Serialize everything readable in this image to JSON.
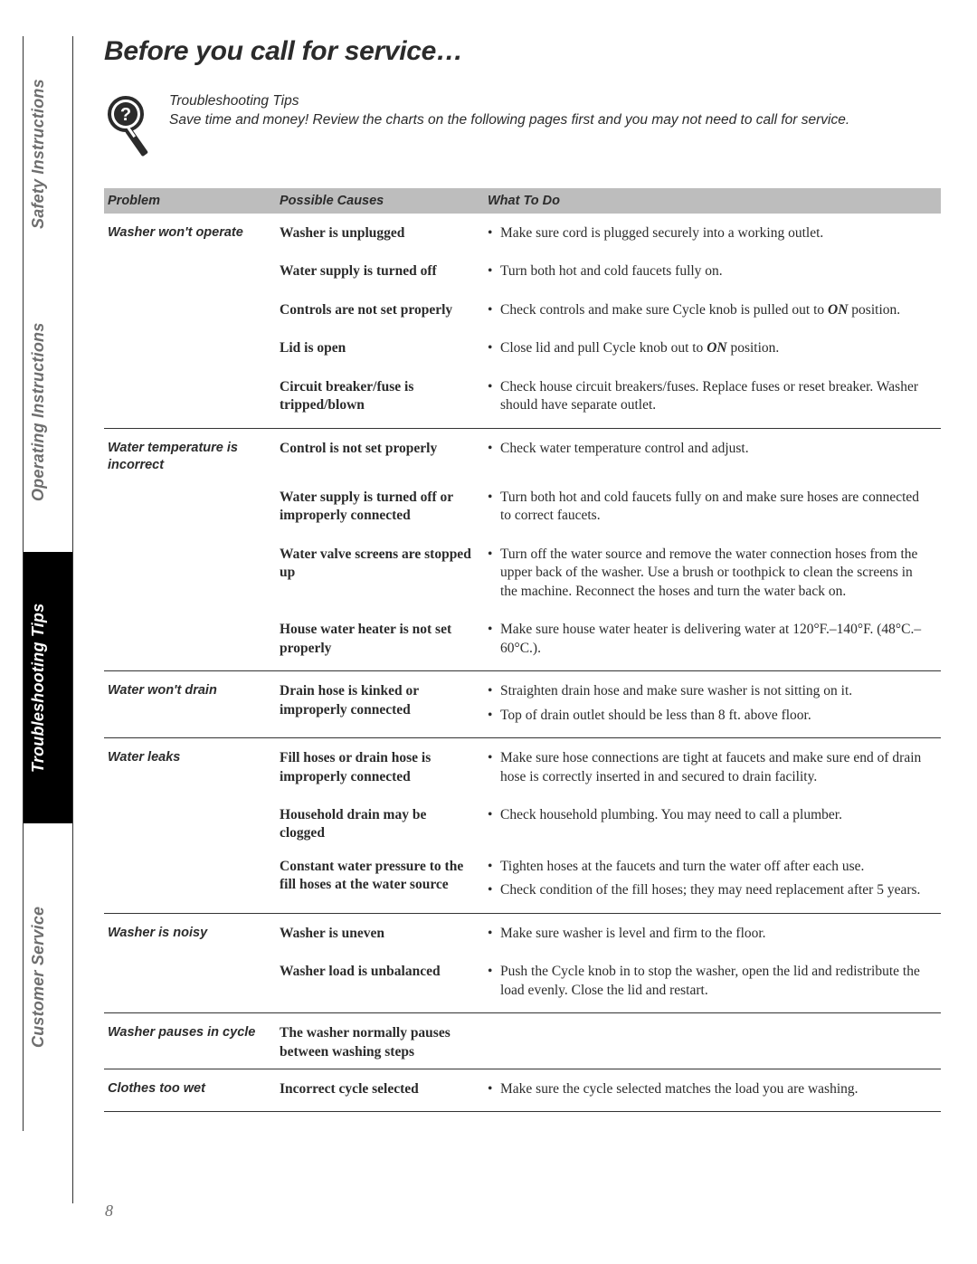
{
  "colors": {
    "page_bg": "#ffffff",
    "text": "#2b2b2b",
    "muted": "#6e6e6e",
    "header_bg": "#bdbdbd",
    "active_tab_bg": "#000000",
    "active_tab_text": "#ffffff",
    "rule": "#333333"
  },
  "typography": {
    "title_font": "Arial, Helvetica, sans-serif",
    "body_font": "Georgia, 'Times New Roman', serif",
    "title_fontsize_pt": 22,
    "tab_fontsize_pt": 13,
    "header_fontsize_pt": 11,
    "body_fontsize_pt": 11.5
  },
  "side_tabs": [
    {
      "label": "Safety Instructions",
      "active": false
    },
    {
      "label": "Operating Instructions",
      "active": false
    },
    {
      "label": "Troubleshooting Tips",
      "active": true
    },
    {
      "label": "Customer Service",
      "active": false
    }
  ],
  "title": "Before you call for service…",
  "tips": {
    "heading": "Troubleshooting Tips",
    "body": "Save time and money! Review the charts on the following pages first and you may not need to call for service."
  },
  "table": {
    "headers": {
      "problem": "Problem",
      "cause": "Possible Causes",
      "todo": "What To Do"
    },
    "on_word": "ON",
    "rows": [
      {
        "problem": "Washer won't operate",
        "cause": "Washer is unplugged",
        "todo": [
          "Make sure cord is plugged securely into a working outlet."
        ],
        "first": true
      },
      {
        "cause": "Water supply is turned off",
        "todo": [
          "Turn both hot and cold faucets fully on."
        ]
      },
      {
        "cause": "Controls are not set properly",
        "todo": [
          "Check controls and make sure Cycle knob is pulled out to {{ON}} position."
        ]
      },
      {
        "cause": "Lid is open",
        "todo": [
          "Close lid and pull Cycle knob out to {{ON}} position."
        ]
      },
      {
        "cause": "Circuit breaker/fuse is tripped/blown",
        "todo": [
          "Check house circuit breakers/fuses. Replace fuses or reset breaker. Washer should have separate outlet."
        ],
        "sep": true
      },
      {
        "problem": "Water temperature is incorrect",
        "cause": "Control is not set properly",
        "todo": [
          "Check water temperature control and adjust."
        ],
        "first": true
      },
      {
        "cause": "Water supply is turned off or improperly connected",
        "todo": [
          "Turn both hot and cold faucets fully on and make sure hoses are connected to correct faucets."
        ]
      },
      {
        "cause": "Water valve screens are stopped up",
        "todo": [
          "Turn off the water source and remove the water connection hoses from the upper back of the washer. Use a brush or toothpick to clean the screens in the machine. Reconnect the hoses and turn the water back on."
        ]
      },
      {
        "cause": "House water heater is not set properly",
        "todo": [
          "Make sure house water heater is delivering water at 120°F.–140°F. (48°C.–60°C.)."
        ],
        "sep": true
      },
      {
        "problem": "Water won't drain",
        "cause": "Drain hose is kinked or improperly connected",
        "todo": [
          "Straighten drain hose and make sure washer is not sitting on it.",
          "Top of drain outlet should be less than 8 ft. above floor."
        ],
        "first": true,
        "sep": true
      },
      {
        "problem": "Water leaks",
        "cause": "Fill hoses or drain hose is improperly connected",
        "todo": [
          "Make sure hose connections are tight at faucets and make sure end of drain hose is correctly inserted in and secured to drain facility."
        ],
        "first": true
      },
      {
        "cause": "Household drain may be clogged",
        "todo": [
          "Check household plumbing. You may need to call a plumber."
        ]
      },
      {
        "cause": "Constant water pressure to the fill hoses at the water source",
        "todo": [
          "Tighten hoses at the faucets and turn the water off after each use.",
          "Check condition of the fill hoses; they may need replacement after 5 years."
        ],
        "sep": true
      },
      {
        "problem": "Washer is noisy",
        "cause": "Washer is uneven",
        "todo": [
          "Make sure washer is level and firm to the floor."
        ],
        "first": true
      },
      {
        "cause": "Washer load is unbalanced",
        "todo": [
          "Push the Cycle knob in to stop the washer, open the lid and redistribute the load evenly. Close the lid and restart."
        ],
        "sep": true
      },
      {
        "problem": "Washer pauses in cycle",
        "cause": "The washer normally pauses between washing steps",
        "todo": [],
        "first": true,
        "sep": true
      },
      {
        "problem": "Clothes too wet",
        "cause": "Incorrect cycle selected",
        "todo": [
          "Make sure the cycle selected matches the load you are washing."
        ],
        "first": true,
        "sep": true
      }
    ]
  },
  "page_number": "8"
}
